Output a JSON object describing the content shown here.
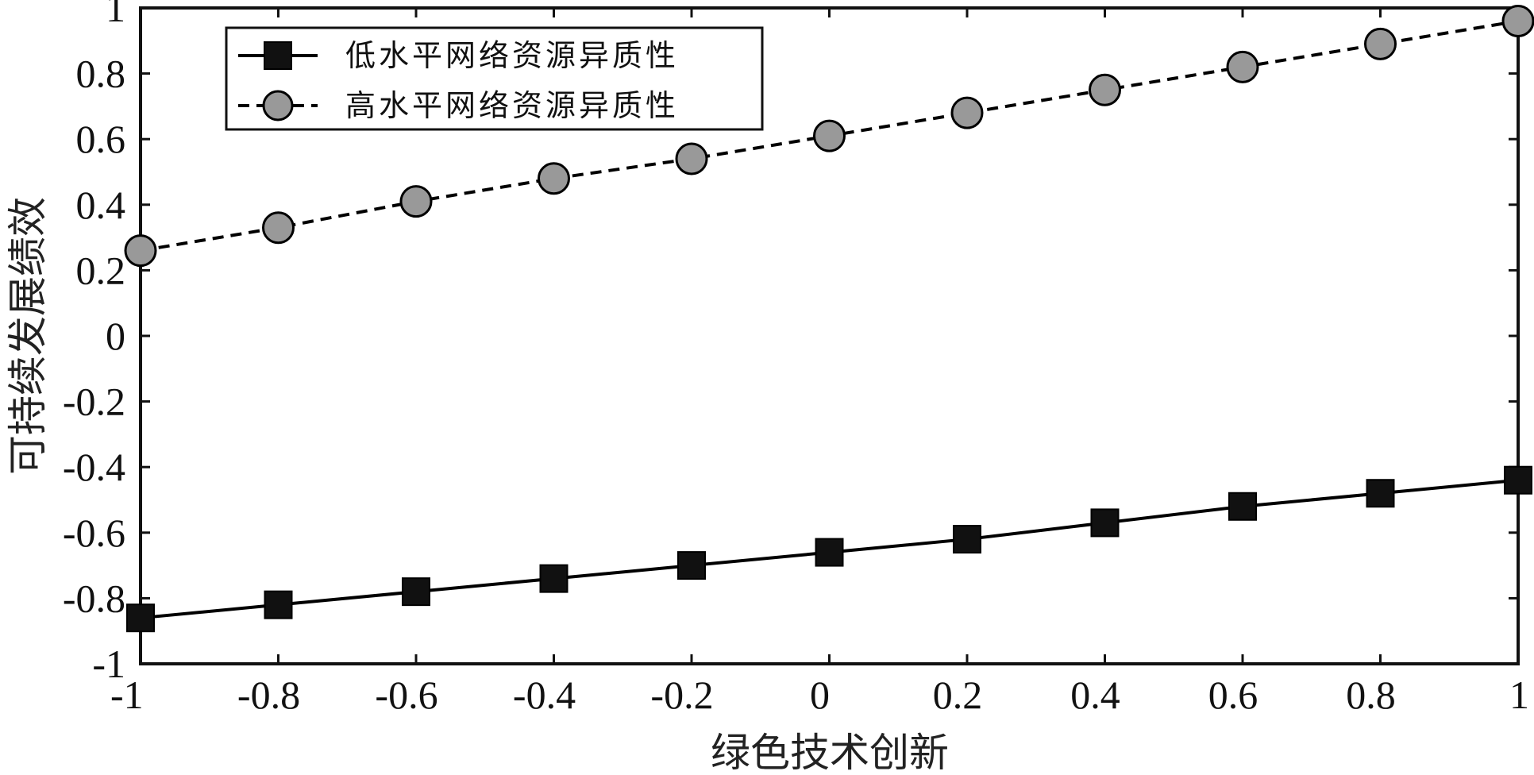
{
  "chart_data": {
    "type": "line",
    "title": "",
    "xlabel": "绿色技术创新",
    "ylabel": "可持续发展绩效",
    "xlim": [
      -1,
      1
    ],
    "ylim": [
      -1,
      1
    ],
    "grid": false,
    "legend_position": "top-left",
    "x_ticks": [
      "-1",
      "-0.8",
      "-0.6",
      "-0.4",
      "-0.2",
      "0",
      "0.2",
      "0.4",
      "0.6",
      "0.8",
      "1"
    ],
    "y_ticks": [
      "-1",
      "-0.8",
      "-0.6",
      "-0.4",
      "-0.2",
      "0",
      "0.2",
      "0.4",
      "0.6",
      "0.8",
      "1"
    ],
    "x": [
      -1,
      -0.8,
      -0.6,
      -0.4,
      -0.2,
      0,
      0.2,
      0.4,
      0.6,
      0.8,
      1
    ],
    "series": [
      {
        "name": "低水平网络资源异质性",
        "line_style": "solid",
        "marker": "square",
        "color": "#000000",
        "marker_fill": "#111111",
        "values": [
          -0.86,
          -0.82,
          -0.78,
          -0.74,
          -0.7,
          -0.66,
          -0.62,
          -0.57,
          -0.52,
          -0.48,
          -0.44
        ]
      },
      {
        "name": "高水平网络资源异质性",
        "line_style": "dashed",
        "marker": "circle",
        "color": "#000000",
        "marker_fill": "#999999",
        "values": [
          0.26,
          0.33,
          0.41,
          0.48,
          0.54,
          0.61,
          0.68,
          0.75,
          0.82,
          0.89,
          0.96
        ]
      }
    ]
  }
}
